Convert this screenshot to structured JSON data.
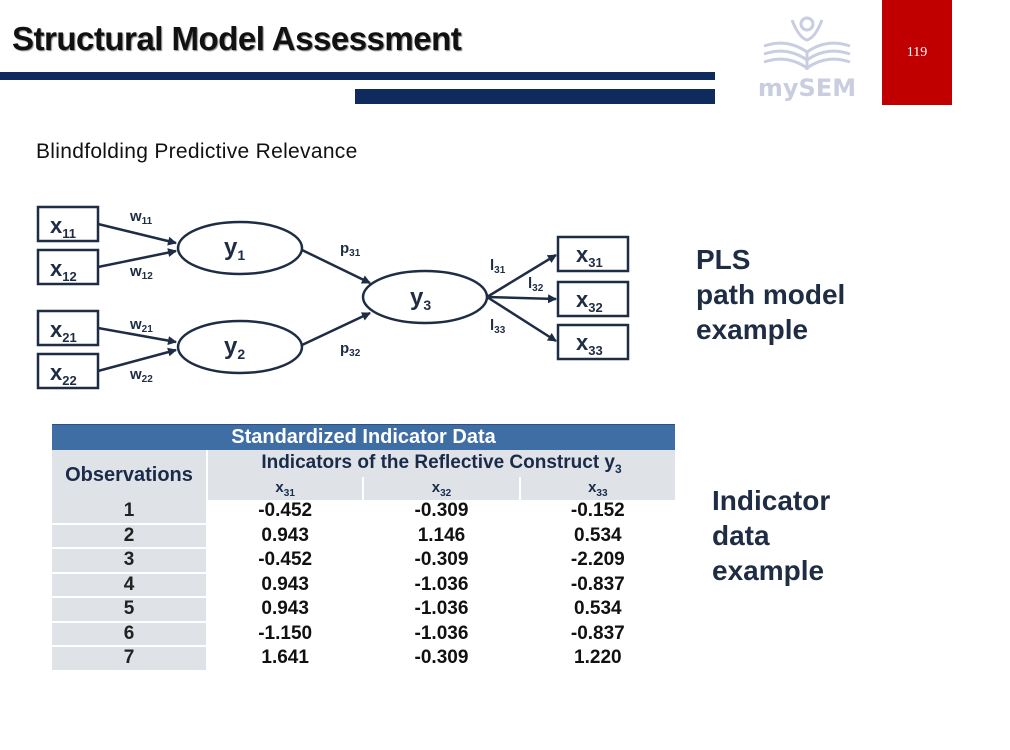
{
  "slide": {
    "title": "Structural Model Assessment",
    "page_number": "119",
    "logo_text": "mySEM",
    "subtitle": "Blindfolding Predictive Relevance"
  },
  "diagram": {
    "indicators_left": [
      {
        "base": "x",
        "sub": "11"
      },
      {
        "base": "x",
        "sub": "12"
      },
      {
        "base": "x",
        "sub": "21"
      },
      {
        "base": "x",
        "sub": "22"
      }
    ],
    "weights": [
      {
        "base": "w",
        "sub": "11"
      },
      {
        "base": "w",
        "sub": "12"
      },
      {
        "base": "w",
        "sub": "21"
      },
      {
        "base": "w",
        "sub": "22"
      }
    ],
    "constructs": [
      {
        "base": "y",
        "sub": "1"
      },
      {
        "base": "y",
        "sub": "2"
      },
      {
        "base": "y",
        "sub": "3"
      }
    ],
    "paths": [
      {
        "base": "p",
        "sub": "31"
      },
      {
        "base": "p",
        "sub": "32"
      }
    ],
    "loadings": [
      {
        "base": "l",
        "sub": "31"
      },
      {
        "base": "l",
        "sub": "32"
      },
      {
        "base": "l",
        "sub": "33"
      }
    ],
    "indicators_right": [
      {
        "base": "x",
        "sub": "31"
      },
      {
        "base": "x",
        "sub": "32"
      },
      {
        "base": "x",
        "sub": "33"
      }
    ],
    "label_lines": [
      "PLS",
      "path model",
      "example"
    ]
  },
  "table": {
    "title": "Standardized Indicator Data",
    "obs_header": "Observations",
    "group_header": "Indicators of the Reflective Construct y",
    "group_header_sub": "3",
    "columns": [
      {
        "base": "x",
        "sub": "31"
      },
      {
        "base": "x",
        "sub": "32"
      },
      {
        "base": "x",
        "sub": "33"
      }
    ],
    "rows": [
      [
        "1",
        "-0.452",
        "-0.309",
        "-0.152"
      ],
      [
        "2",
        "0.943",
        "1.146",
        "0.534"
      ],
      [
        "3",
        "-0.452",
        "-0.309",
        "-2.209"
      ],
      [
        "4",
        "0.943",
        "-1.036",
        "-0.837"
      ],
      [
        "5",
        "0.943",
        "-1.036",
        "0.534"
      ],
      [
        "6",
        "-1.150",
        "-1.036",
        "-0.837"
      ],
      [
        "7",
        "1.641",
        "-0.309",
        "1.220"
      ]
    ],
    "label_lines": [
      "Indicator",
      "data",
      "example"
    ]
  },
  "colors": {
    "navy_bar": "#0f2a5c",
    "page_box": "#c00000",
    "table_title_bg": "#3f6ea5",
    "table_header_bg": "#dfe3e8",
    "diagram_ink": "#1f2d44"
  }
}
